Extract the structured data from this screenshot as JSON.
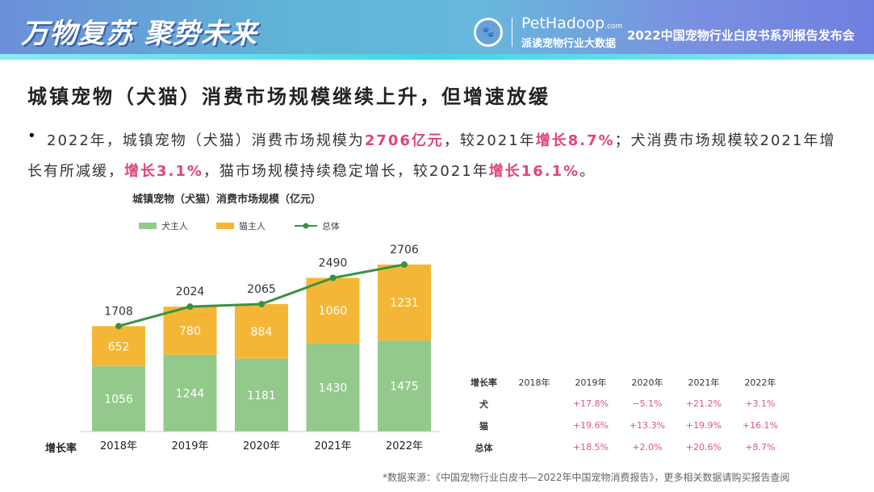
{
  "banner": {
    "slogan": "万物复苏  聚势未来",
    "brand": "PetHadoop",
    "brand_suffix": ".com",
    "brand_sub": "派读宠物行业大数据",
    "event": "2022中国宠物行业白皮书系列报告发布会",
    "logo_icon": "pet-badge-icon"
  },
  "title": "城镇宠物（犬猫）消费市场规模继续上升，但增速放缓",
  "paragraph": {
    "bullet": "•",
    "p1": "2022年，城镇宠物（犬猫）消费市场规模为",
    "h1": "2706亿元",
    "p2": "，较2021年",
    "h2": "增长8.7%",
    "p3": "；犬消费市场规模较2021年增长有所减缓，",
    "h3": "增长3.1%",
    "p4": "，猫市场规模持续稳定增长，较2021年",
    "h4": "增长16.1%",
    "p5": "。"
  },
  "chart_data": {
    "type": "bar",
    "title": "城镇宠物（犬猫）消费市场规模（亿元）",
    "stacked": true,
    "legend_position": "top-left",
    "categories": [
      "2018年",
      "2019年",
      "2020年",
      "2021年",
      "2022年"
    ],
    "series": [
      {
        "name": "犬主人",
        "type": "bar",
        "color": "#93c98b",
        "values": [
          1056,
          1244,
          1181,
          1430,
          1475
        ]
      },
      {
        "name": "猫主人",
        "type": "bar",
        "color": "#f4b735",
        "values": [
          652,
          780,
          884,
          1060,
          1231
        ]
      },
      {
        "name": "总体",
        "type": "line",
        "color": "#3a9143",
        "values": [
          1708,
          2024,
          2065,
          2490,
          2706
        ]
      }
    ]
  },
  "growth_label": "增长率",
  "growth_table": {
    "header": [
      "增长率",
      "2018年",
      "2019年",
      "2020年",
      "2021年",
      "2022年"
    ],
    "rows": [
      {
        "label": "犬",
        "values": [
          "",
          "+17.8%",
          "−5.1%",
          "+21.2%",
          "+3.1%"
        ]
      },
      {
        "label": "猫",
        "values": [
          "",
          "+19.6%",
          "+13.3%",
          "+19.9%",
          "+16.1%"
        ]
      },
      {
        "label": "总体",
        "values": [
          "",
          "+18.5%",
          "+2.0%",
          "+20.6%",
          "+8.7%"
        ]
      }
    ]
  },
  "source": "*数据来源：《中国宠物行业白皮书—2022年中国宠物消费报告》，更多相关数据请购买报告查阅"
}
